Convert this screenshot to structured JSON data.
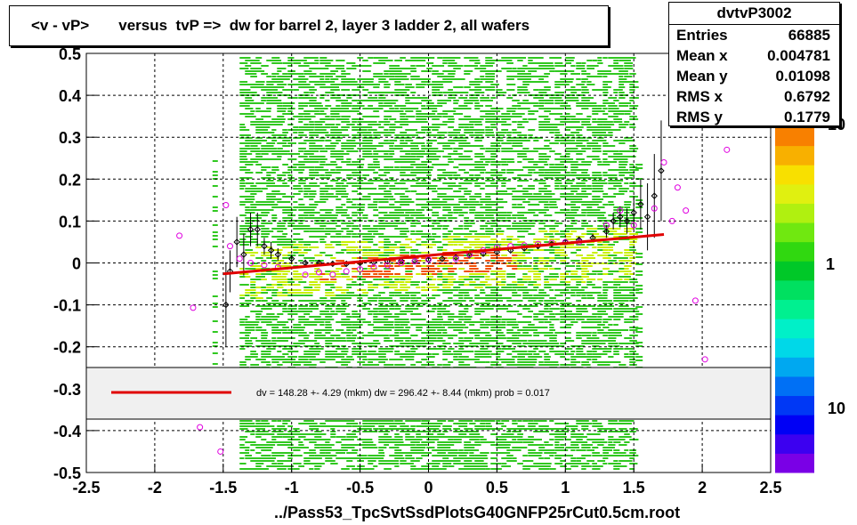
{
  "title": "<v - vP>       versus  tvP =>  dw for barrel 2, layer 3 ladder 2, all wafers",
  "footer": "../Pass53_TpcSvtSsdPlotsG40GNFP25rCut0.5cm.root",
  "stats": {
    "name": "dvtvP3002",
    "rows": [
      {
        "label": "Entries",
        "value": "66885"
      },
      {
        "label": "Mean x",
        "value": "0.004781"
      },
      {
        "label": "Mean y",
        "value": "0.01098"
      },
      {
        "label": "RMS x",
        "value": "0.6792"
      },
      {
        "label": "RMS y",
        "value": "0.1779"
      }
    ]
  },
  "fit_legend": "dv =  148.28 +-  4.29 (mkm) dw =  296.42 +-  8.44 (mkm) prob = 0.017",
  "palette": {
    "labels": [
      "10",
      "1",
      "10"
    ],
    "colors": [
      "#7a00e6",
      "#3c00f0",
      "#0000f5",
      "#0038f5",
      "#0070f5",
      "#00a8f0",
      "#00d8e8",
      "#00f0c8",
      "#00f090",
      "#00e060",
      "#00c828",
      "#30d810",
      "#70e810",
      "#b0f010",
      "#e0f010",
      "#f8e000",
      "#f8b000",
      "#f88000"
    ]
  },
  "colors": {
    "fit_line": "#e00000",
    "profile_marker": "#000000",
    "second_marker": "#e000e0",
    "fill_low": "#30c820",
    "fill_mid": "#c8f000",
    "fill_high": "#f05000"
  },
  "chart_data": {
    "type": "heatmap",
    "xlim": [
      -2.5,
      2.5
    ],
    "ylim": [
      -0.5,
      0.5
    ],
    "x_ticks": [
      "-2.5",
      "-2",
      "-1.5",
      "-1",
      "-0.5",
      "0",
      "0.5",
      "1",
      "1.5",
      "2",
      "2.5"
    ],
    "y_ticks": [
      "-0.5",
      "-0.4",
      "-0.3",
      "-0.2",
      "-0.1",
      "0",
      "0.1",
      "0.2",
      "0.3",
      "0.4",
      "0.5"
    ],
    "x_tick_values": [
      -2.5,
      -2,
      -1.5,
      -1,
      -0.5,
      0,
      0.5,
      1,
      1.5,
      2,
      2.5
    ],
    "y_tick_values": [
      -0.5,
      -0.4,
      -0.3,
      -0.2,
      -0.1,
      0,
      0.1,
      0.2,
      0.3,
      0.4,
      0.5
    ],
    "grid": true,
    "fit_line": {
      "x": [
        -1.5,
        1.72
      ],
      "y": [
        -0.026,
        0.068
      ]
    },
    "profile_points": [
      {
        "x": -1.48,
        "y": -0.1,
        "err": 0.1
      },
      {
        "x": -1.45,
        "y": -0.02,
        "err": 0.05
      },
      {
        "x": -1.4,
        "y": 0.05,
        "err": 0.06
      },
      {
        "x": -1.35,
        "y": 0.02,
        "err": 0.05
      },
      {
        "x": -1.3,
        "y": 0.08,
        "err": 0.04
      },
      {
        "x": -1.25,
        "y": 0.08,
        "err": 0.04
      },
      {
        "x": -1.2,
        "y": 0.04,
        "err": 0.02
      },
      {
        "x": -1.15,
        "y": 0.03,
        "err": 0.02
      },
      {
        "x": -1.1,
        "y": 0.02,
        "err": 0.015
      },
      {
        "x": -1.0,
        "y": 0.01,
        "err": 0.01
      },
      {
        "x": -0.9,
        "y": 0.0,
        "err": 0.008
      },
      {
        "x": -0.8,
        "y": 0.0,
        "err": 0.006
      },
      {
        "x": -0.7,
        "y": -0.002,
        "err": 0.005
      },
      {
        "x": -0.6,
        "y": -0.002,
        "err": 0.004
      },
      {
        "x": -0.5,
        "y": 0.0,
        "err": 0.004
      },
      {
        "x": -0.4,
        "y": 0.002,
        "err": 0.003
      },
      {
        "x": -0.3,
        "y": 0.004,
        "err": 0.003
      },
      {
        "x": -0.2,
        "y": 0.005,
        "err": 0.003
      },
      {
        "x": -0.1,
        "y": 0.006,
        "err": 0.003
      },
      {
        "x": 0.0,
        "y": 0.008,
        "err": 0.003
      },
      {
        "x": 0.1,
        "y": 0.01,
        "err": 0.003
      },
      {
        "x": 0.2,
        "y": 0.013,
        "err": 0.003
      },
      {
        "x": 0.3,
        "y": 0.018,
        "err": 0.003
      },
      {
        "x": 0.4,
        "y": 0.022,
        "err": 0.004
      },
      {
        "x": 0.5,
        "y": 0.026,
        "err": 0.004
      },
      {
        "x": 0.6,
        "y": 0.03,
        "err": 0.004
      },
      {
        "x": 0.7,
        "y": 0.035,
        "err": 0.005
      },
      {
        "x": 0.8,
        "y": 0.04,
        "err": 0.005
      },
      {
        "x": 0.9,
        "y": 0.045,
        "err": 0.006
      },
      {
        "x": 1.0,
        "y": 0.05,
        "err": 0.007
      },
      {
        "x": 1.1,
        "y": 0.055,
        "err": 0.008
      },
      {
        "x": 1.2,
        "y": 0.06,
        "err": 0.01
      },
      {
        "x": 1.3,
        "y": 0.075,
        "err": 0.015
      },
      {
        "x": 1.35,
        "y": 0.1,
        "err": 0.02
      },
      {
        "x": 1.4,
        "y": 0.11,
        "err": 0.025
      },
      {
        "x": 1.45,
        "y": 0.1,
        "err": 0.03
      },
      {
        "x": 1.5,
        "y": 0.12,
        "err": 0.04
      },
      {
        "x": 1.55,
        "y": 0.14,
        "err": 0.06
      },
      {
        "x": 1.6,
        "y": 0.11,
        "err": 0.08
      },
      {
        "x": 1.65,
        "y": 0.16,
        "err": 0.1
      },
      {
        "x": 1.7,
        "y": 0.22,
        "err": 0.12
      }
    ],
    "second_points": [
      {
        "x": -1.82,
        "y": 0.065
      },
      {
        "x": -1.72,
        "y": -0.107
      },
      {
        "x": -1.67,
        "y": -0.392
      },
      {
        "x": -1.52,
        "y": -0.45
      },
      {
        "x": -1.48,
        "y": 0.138
      },
      {
        "x": -1.45,
        "y": 0.04
      },
      {
        "x": -1.38,
        "y": 0.01
      },
      {
        "x": -1.3,
        "y": 0.0
      },
      {
        "x": -1.2,
        "y": -0.005
      },
      {
        "x": -1.1,
        "y": -0.01
      },
      {
        "x": -0.9,
        "y": -0.028
      },
      {
        "x": -0.8,
        "y": -0.022
      },
      {
        "x": -0.7,
        "y": -0.028
      },
      {
        "x": -0.6,
        "y": -0.02
      },
      {
        "x": -0.5,
        "y": -0.015
      },
      {
        "x": -0.4,
        "y": -0.01
      },
      {
        "x": -0.3,
        "y": -0.006
      },
      {
        "x": -0.2,
        "y": 0.0
      },
      {
        "x": -0.1,
        "y": 0.004
      },
      {
        "x": 0.0,
        "y": 0.008
      },
      {
        "x": 0.2,
        "y": 0.01
      },
      {
        "x": 0.3,
        "y": 0.02
      },
      {
        "x": 0.4,
        "y": 0.03
      },
      {
        "x": 0.5,
        "y": 0.037
      },
      {
        "x": 0.6,
        "y": 0.04
      },
      {
        "x": 0.7,
        "y": 0.042
      },
      {
        "x": 0.8,
        "y": 0.045
      },
      {
        "x": 0.9,
        "y": 0.048
      },
      {
        "x": 1.0,
        "y": 0.05
      },
      {
        "x": 1.1,
        "y": 0.05
      },
      {
        "x": 1.3,
        "y": 0.09
      },
      {
        "x": 1.4,
        "y": 0.125
      },
      {
        "x": 1.5,
        "y": 0.09
      },
      {
        "x": 1.65,
        "y": 0.13
      },
      {
        "x": 1.72,
        "y": 0.24
      },
      {
        "x": 1.78,
        "y": 0.1
      },
      {
        "x": 1.82,
        "y": 0.18
      },
      {
        "x": 1.88,
        "y": 0.125
      },
      {
        "x": 1.95,
        "y": -0.09
      },
      {
        "x": 2.02,
        "y": -0.23
      },
      {
        "x": 2.18,
        "y": 0.27
      },
      {
        "x": 2.35,
        "y": 0.42
      }
    ]
  }
}
